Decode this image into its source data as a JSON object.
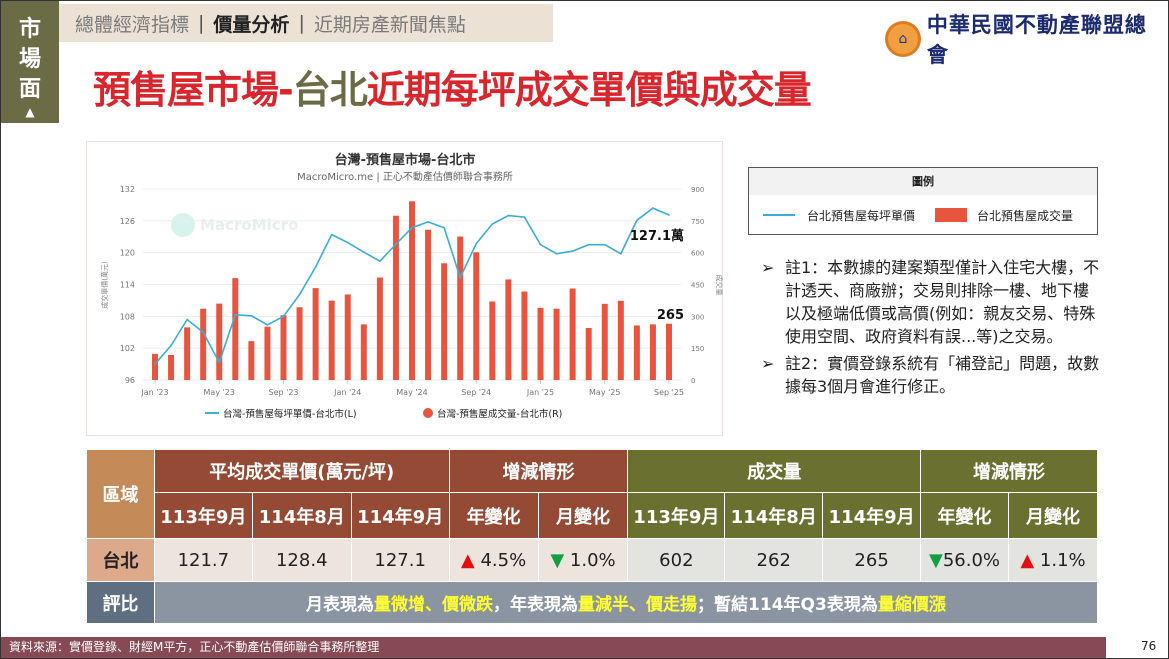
{
  "sidebar": {
    "label_chars": [
      "市",
      "場",
      "面"
    ],
    "arrow": "▲"
  },
  "nav": {
    "tabs": [
      {
        "label": "總體經濟指標",
        "active": false
      },
      {
        "label": "價量分析",
        "active": true
      },
      {
        "label": "近期房產新聞焦點",
        "active": false
      }
    ]
  },
  "logo": {
    "text": "中華民國不動產聯盟總會",
    "icon": "association-seal-icon"
  },
  "page_title": {
    "part1": "預售屋市場-",
    "part2": "台北",
    "part3": "近期每坪成交單價與成交量"
  },
  "chart_data": {
    "type": "bar+line",
    "title": "台灣-預售屋市場-台北市",
    "subtitle": "MacroMicro.me | 正心不動產估價師聯合事務所",
    "watermark": "MacroMicro",
    "ylabel_left": "成交單價(萬元)",
    "ylabel_right": "成交量",
    "ylim_left": [
      96,
      132
    ],
    "yticks_left": [
      96,
      102,
      108,
      114,
      120,
      126,
      132
    ],
    "ylim_right": [
      0,
      900
    ],
    "yticks_right": [
      0,
      150,
      300,
      450,
      600,
      750,
      900
    ],
    "x_tick_labels": [
      "Jan '23",
      "May '23",
      "Sep '23",
      "Jan '24",
      "May '24",
      "Sep '24",
      "Jan '25",
      "May '25",
      "Sep '25"
    ],
    "x": [
      "2023-01",
      "2023-02",
      "2023-03",
      "2023-04",
      "2023-05",
      "2023-06",
      "2023-07",
      "2023-08",
      "2023-09",
      "2023-10",
      "2023-11",
      "2023-12",
      "2024-01",
      "2024-02",
      "2024-03",
      "2024-04",
      "2024-05",
      "2024-06",
      "2024-07",
      "2024-08",
      "2024-09",
      "2024-10",
      "2024-11",
      "2024-12",
      "2025-01",
      "2025-02",
      "2025-03",
      "2025-04",
      "2025-05",
      "2025-06",
      "2025-07",
      "2025-08",
      "2025-09"
    ],
    "series": [
      {
        "name": "台灣-預售屋每坪單價-台北市(L)",
        "type": "line",
        "axis": "left",
        "color": "#3aaed8",
        "values": [
          99.0,
          102.5,
          107.4,
          105.0,
          99.3,
          108.3,
          108.1,
          106.4,
          108.0,
          112.1,
          117.3,
          123.4,
          121.9,
          120.1,
          118.4,
          121.6,
          124.7,
          125.8,
          124.7,
          115.3,
          121.7,
          125.4,
          127.0,
          126.7,
          121.5,
          119.8,
          120.3,
          121.5,
          121.5,
          119.8,
          126.1,
          128.4,
          127.1
        ]
      },
      {
        "name": "台灣-預售屋成交量-台北市(R)",
        "type": "bar",
        "axis": "right",
        "color": "#e8553e",
        "values": [
          123,
          118,
          248,
          336,
          360,
          480,
          183,
          251,
          305,
          343,
          433,
          374,
          403,
          262,
          483,
          774,
          842,
          708,
          550,
          676,
          602,
          370,
          474,
          417,
          340,
          336,
          431,
          245,
          359,
          373,
          257,
          262,
          265
        ]
      }
    ],
    "annotations": [
      "127.1萬",
      "265"
    ],
    "grid": true,
    "legend_position": "bottom"
  },
  "legend": {
    "title": "圖例",
    "items": [
      {
        "label": "台北預售屋每坪單價",
        "color": "#3aaed8"
      },
      {
        "label": "台北預售屋成交量",
        "color": "#e8553e"
      }
    ]
  },
  "notes": [
    {
      "bullet": "➢",
      "text": "註1：本數據的建案類型僅計入住宅大樓，不計透天、商廠辦；交易則排除一樓、地下樓以及極端低價或高價(例如：親友交易、特殊使用空間、政府資料有誤...等)之交易。"
    },
    {
      "bullet": "➢",
      "text": "註2：實價登錄系統有「補登記」問題，故數據每3個月會進行修正。"
    }
  ],
  "table": {
    "region_header": "區域",
    "price_header": "平均成交單價(萬元/坪)",
    "change_header": "增減情形",
    "volume_header": "成交量",
    "periods": [
      "113年9月",
      "114年8月",
      "114年9月"
    ],
    "change_cols": [
      "年變化",
      "月變化"
    ],
    "row": {
      "region": "台北",
      "price": [
        "121.7",
        "128.4",
        "127.1"
      ],
      "price_change": [
        {
          "dir": "up",
          "value": "4.5%"
        },
        {
          "dir": "down",
          "value": "1.0%"
        }
      ],
      "volume": [
        "602",
        "262",
        "265"
      ],
      "volume_change": [
        {
          "dir": "down",
          "value": "56.0%"
        },
        {
          "dir": "up",
          "value": "1.1%"
        }
      ]
    },
    "comment_label": "評比",
    "comment": {
      "t1": "月表現為",
      "h1": "量微增、價微跌",
      "t2": "，年表現為",
      "h2": "量減半、價走揚",
      "t3": "；暫結114年Q3表現為",
      "h3": "量縮價漲"
    },
    "up_color": "#e01010",
    "down_color": "#10a040"
  },
  "footer": {
    "source": "資料來源：實價登錄、財經M平方，正心不動產估價師聯合事務所整理",
    "page": "76"
  }
}
